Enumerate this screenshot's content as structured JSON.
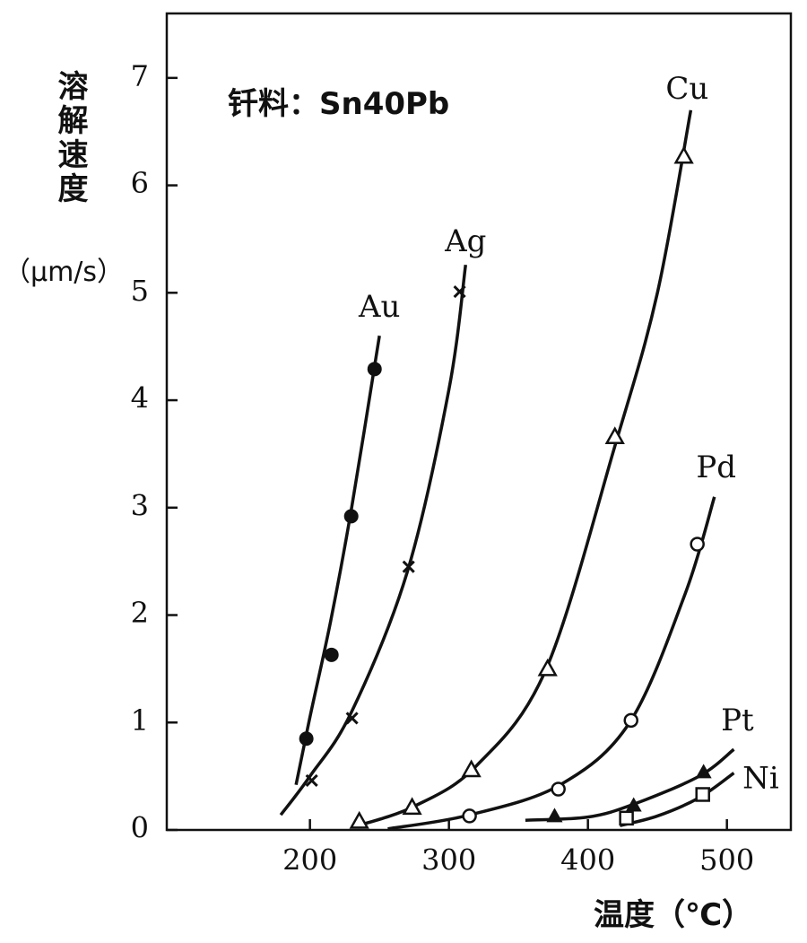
{
  "chart_data": {
    "type": "line",
    "annotation": "钎料：Sn40Pb",
    "ylabel": "溶解速度",
    "yunit": "（μm/s）",
    "xlabel": "温度（℃）",
    "xlim": [
      97,
      546
    ],
    "ylim": [
      0,
      7.6
    ],
    "xticks": [
      200,
      300,
      400,
      500
    ],
    "yticks": [
      0,
      1,
      2,
      3,
      4,
      5,
      6,
      7
    ],
    "grid": false,
    "series": [
      {
        "name": "Au",
        "color": "#111111",
        "marker": "filled-circle",
        "x": [
          197.4,
          215.5,
          229.7,
          246.5
        ],
        "values": [
          0.85,
          1.63,
          2.92,
          4.29
        ],
        "curve_x": [
          190,
          200,
          215,
          230,
          250
        ],
        "curve_y": [
          0.42,
          1.05,
          1.95,
          3.0,
          4.6
        ]
      },
      {
        "name": "Ag",
        "color": "#111111",
        "marker": "cross",
        "x": [
          201.3,
          230.3,
          271,
          307.7
        ],
        "values": [
          0.46,
          1.04,
          2.45,
          5.01
        ],
        "curve_x": [
          179,
          200,
          230,
          270,
          300,
          312
        ],
        "curve_y": [
          0.14,
          0.5,
          1.1,
          2.4,
          4.1,
          5.26
        ]
      },
      {
        "name": "Cu",
        "color": "#111111",
        "marker": "open-triangle",
        "x": [
          235.5,
          273.5,
          316.1,
          371,
          419.4,
          469
        ],
        "values": [
          0.08,
          0.21,
          0.56,
          1.5,
          3.66,
          6.27
        ],
        "curve_x": [
          232,
          275,
          320,
          370,
          420,
          450,
          474
        ],
        "curve_y": [
          0.03,
          0.22,
          0.6,
          1.5,
          3.6,
          5.0,
          6.7
        ]
      },
      {
        "name": "Pd",
        "color": "#111111",
        "marker": "open-circle",
        "x": [
          314.8,
          378.7,
          431,
          478.7
        ],
        "values": [
          0.13,
          0.38,
          1.02,
          2.66
        ],
        "curve_x": [
          256,
          315,
          380,
          430,
          470,
          491
        ],
        "curve_y": [
          0.01,
          0.14,
          0.42,
          1.0,
          2.2,
          3.1
        ]
      },
      {
        "name": "Pt",
        "color": "#111111",
        "marker": "filled-triangle",
        "x": [
          376,
          432.9,
          483.2
        ],
        "values": [
          0.13,
          0.23,
          0.54
        ],
        "curve_x": [
          355,
          400,
          433,
          480,
          505
        ],
        "curve_y": [
          0.09,
          0.12,
          0.24,
          0.5,
          0.75
        ]
      },
      {
        "name": "Ni",
        "color": "#111111",
        "marker": "open-square",
        "x": [
          427.7,
          482.6
        ],
        "values": [
          0.11,
          0.33
        ],
        "curve_x": [
          423,
          450,
          480,
          505
        ],
        "curve_y": [
          0.04,
          0.13,
          0.3,
          0.53
        ]
      }
    ]
  }
}
